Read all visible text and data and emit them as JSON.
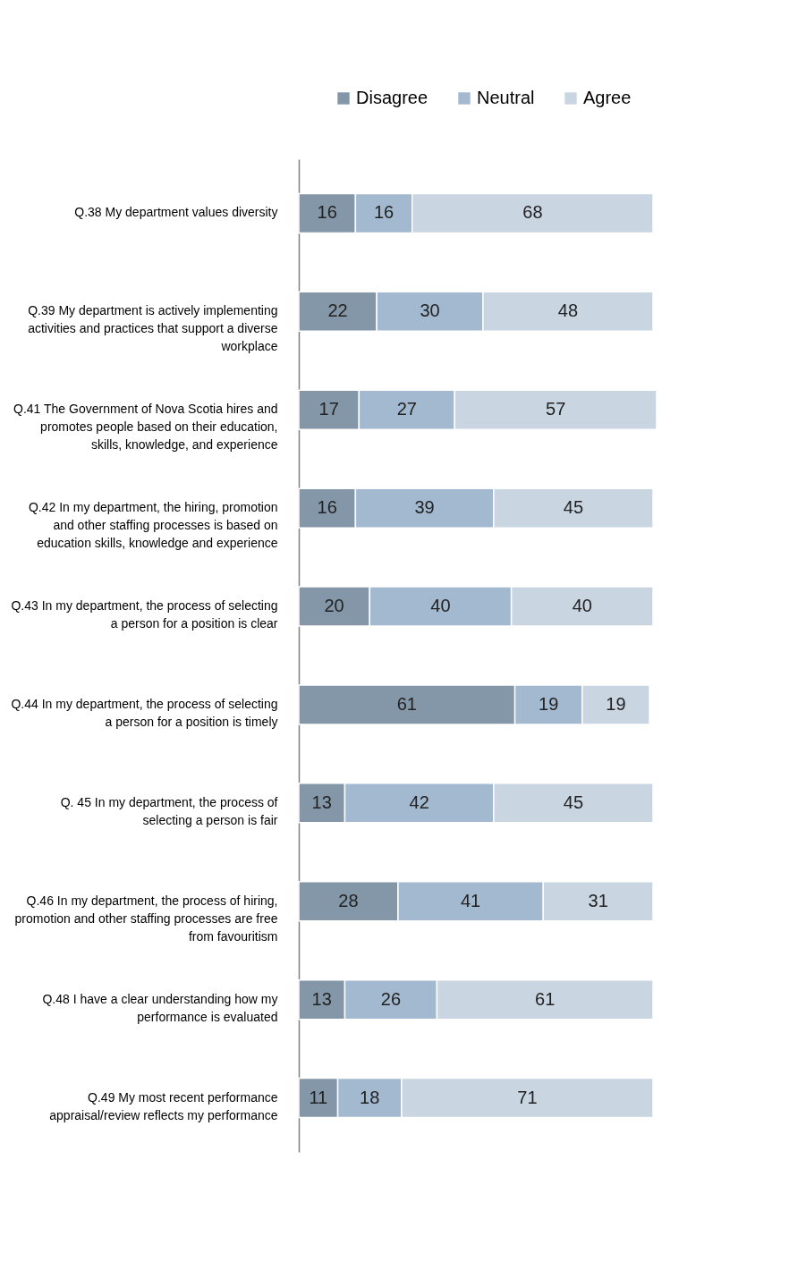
{
  "chart_data": {
    "type": "bar",
    "orientation": "horizontal",
    "stacked": true,
    "data_labels": true,
    "legend": "top",
    "grid": false,
    "xlim": [
      0,
      101
    ],
    "tick_labels": "y",
    "categories": [
      "Q.38  My department values diversity",
      "Q.39  My department is actively implementing activities and practices that support a diverse workplace",
      "Q.41  The Government of Nova Scotia hires and promotes people based on their education, skills, knowledge, and experience",
      "Q.42  In my department, the hiring, promotion and other staffing processes is based on education skills, knowledge and experience",
      "Q.43  In my department, the process of selecting a person for a position is clear",
      "Q.44  In my department, the process of selecting a person for a position is timely",
      "Q. 45  In my department, the process of selecting a person is fair",
      "Q.46  In my department, the process of hiring, promotion and other staffing processes are free from favouritism",
      "Q.48  I have a clear understanding how my performance is evaluated",
      "Q.49  My most recent performance appraisal/review reflects my performance"
    ],
    "series": [
      {
        "name": "Disagree",
        "color": "#8497a9",
        "values": [
          16,
          22,
          17,
          16,
          20,
          61,
          13,
          28,
          13,
          11
        ]
      },
      {
        "name": "Neutral",
        "color": "#a3b9d0",
        "values": [
          16,
          30,
          27,
          39,
          40,
          19,
          42,
          41,
          26,
          18
        ]
      },
      {
        "name": "Agree",
        "color": "#c9d5e1",
        "values": [
          68,
          48,
          57,
          45,
          40,
          19,
          45,
          31,
          61,
          71
        ]
      }
    ]
  }
}
